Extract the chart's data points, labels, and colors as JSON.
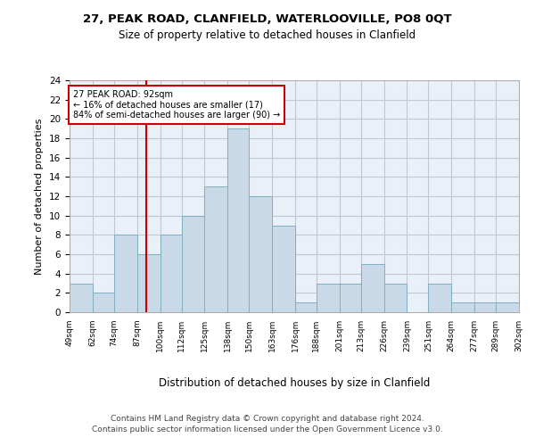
{
  "title1": "27, PEAK ROAD, CLANFIELD, WATERLOOVILLE, PO8 0QT",
  "title2": "Size of property relative to detached houses in Clanfield",
  "xlabel": "Distribution of detached houses by size in Clanfield",
  "ylabel": "Number of detached properties",
  "footer1": "Contains HM Land Registry data © Crown copyright and database right 2024.",
  "footer2": "Contains public sector information licensed under the Open Government Licence v3.0.",
  "annotation_line1": "27 PEAK ROAD: 92sqm",
  "annotation_line2": "← 16% of detached houses are smaller (17)",
  "annotation_line3": "84% of semi-detached houses are larger (90) →",
  "bar_edges": [
    49,
    62,
    74,
    87,
    100,
    112,
    125,
    138,
    150,
    163,
    176,
    188,
    201,
    213,
    226,
    239,
    251,
    264,
    277,
    289,
    302
  ],
  "bar_heights": [
    3,
    2,
    8,
    6,
    8,
    10,
    13,
    19,
    12,
    9,
    1,
    3,
    3,
    5,
    3,
    0,
    3,
    1,
    1,
    1,
    1
  ],
  "tick_labels": [
    "49sqm",
    "62sqm",
    "74sqm",
    "87sqm",
    "100sqm",
    "112sqm",
    "125sqm",
    "138sqm",
    "150sqm",
    "163sqm",
    "176sqm",
    "188sqm",
    "201sqm",
    "213sqm",
    "226sqm",
    "239sqm",
    "251sqm",
    "264sqm",
    "277sqm",
    "289sqm",
    "302sqm"
  ],
  "bar_color": "#c9d9e8",
  "bar_edge_color": "#7fafc0",
  "vline_x": 92,
  "vline_color": "#cc0000",
  "annotation_box_color": "#cc0000",
  "grid_color": "#c0c8d8",
  "bg_color": "#eaf0f8",
  "ylim": [
    0,
    24
  ],
  "yticks": [
    0,
    2,
    4,
    6,
    8,
    10,
    12,
    14,
    16,
    18,
    20,
    22,
    24
  ]
}
